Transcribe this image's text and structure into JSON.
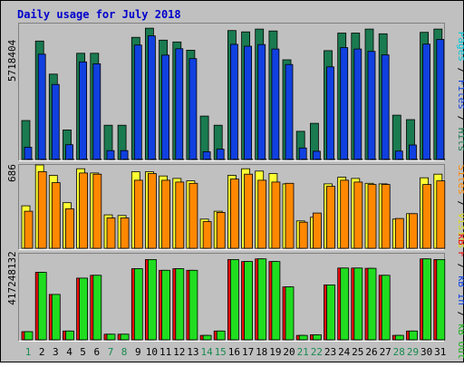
{
  "title": "Daily usage for July 2018",
  "colors": {
    "frame_bg": "#c0c0c0",
    "plot_bg": "#c0c0c0",
    "title": "#0000cc",
    "hits": "#1a7a50",
    "files": "#1040e0",
    "pages": "#00c8d8",
    "visits": "#ffff33",
    "sites": "#ff8800",
    "kbf": "#ee1010",
    "kbin": "#20dd20",
    "kbout": "#1040e0",
    "weekday_label": "#000000",
    "weekend_label": "#1a8a50"
  },
  "panels": {
    "top": {
      "scale_label": "5718404",
      "right_label": [
        {
          "text": "Hits",
          "color": "#1a7a50"
        },
        {
          "text": "Files",
          "color": "#1040e0"
        },
        {
          "text": "Pages",
          "color": "#00c8d8"
        }
      ]
    },
    "middle": {
      "scale_label": "686",
      "right_label": [
        {
          "text": "Visits",
          "color": "#d8d820"
        },
        {
          "text": "Sites",
          "color": "#ff8800"
        }
      ]
    },
    "bottom": {
      "scale_label": "417248132",
      "right_label": [
        {
          "text": "kB Out",
          "color": "#20b020"
        },
        {
          "text": "kB In",
          "color": "#1040e0"
        },
        {
          "text": "kB F",
          "color": "#ee1010"
        }
      ]
    }
  },
  "chart_data": {
    "type": "bar",
    "title": "Daily usage for July 2018",
    "categories": [
      "1",
      "2",
      "3",
      "4",
      "5",
      "6",
      "7",
      "8",
      "9",
      "10",
      "11",
      "12",
      "13",
      "14",
      "15",
      "16",
      "17",
      "18",
      "19",
      "20",
      "21",
      "22",
      "23",
      "24",
      "25",
      "26",
      "27",
      "28",
      "29",
      "30",
      "31"
    ],
    "weekend_days": [
      "1",
      "7",
      "8",
      "14",
      "15",
      "21",
      "22",
      "28",
      "29"
    ],
    "panels": [
      {
        "name": "top",
        "ylim": [
          0,
          5718404
        ],
        "series": [
          {
            "name": "Hits",
            "values": [
              1660000,
              5050000,
              3640000,
              1260000,
              4530000,
              4530000,
              1460000,
              1460000,
              5210000,
              5600000,
              5090000,
              5010000,
              4660000,
              1850000,
              1460000,
              5500000,
              5440000,
              5560000,
              5480000,
              4250000,
              1200000,
              1540000,
              4640000,
              5390000,
              5390000,
              5560000,
              5360000,
              1890000,
              1700000,
              5420000,
              5560000
            ]
          },
          {
            "name": "Files",
            "values": [
              520000,
              4490000,
              3200000,
              630000,
              4160000,
              4080000,
              380000,
              380000,
              4880000,
              5270000,
              4450000,
              4720000,
              4300000,
              330000,
              440000,
              4910000,
              4830000,
              4900000,
              4710000,
              4050000,
              490000,
              350000,
              3950000,
              4770000,
              4710000,
              4610000,
              4460000,
              360000,
              620000,
              4920000,
              5120000
            ]
          },
          {
            "name": "Pages",
            "values": [
              10000,
              10000,
              10000,
              10000,
              10000,
              10000,
              10000,
              10000,
              10000,
              10000,
              10000,
              10000,
              10000,
              10000,
              10000,
              10000,
              10000,
              10000,
              10000,
              10000,
              10000,
              10000,
              10000,
              10000,
              10000,
              10000,
              10000,
              10000,
              10000,
              10000,
              10000
            ]
          }
        ]
      },
      {
        "name": "middle",
        "ylim": [
          0,
          686
        ],
        "series": [
          {
            "name": "Visits",
            "values": [
              350,
              686,
              600,
              375,
              655,
              620,
              275,
              270,
              630,
              630,
              595,
              575,
              555,
              240,
              305,
              600,
              655,
              635,
              615,
              530,
              225,
              255,
              530,
              585,
              575,
              535,
              530,
              240,
              285,
              580,
              610
            ]
          },
          {
            "name": "Sites",
            "values": [
              305,
              630,
              540,
              325,
              620,
              610,
              250,
              250,
              560,
              615,
              560,
              545,
              535,
              220,
              295,
              570,
              610,
              560,
              545,
              535,
              215,
              290,
              510,
              560,
              545,
              525,
              525,
              245,
              285,
              525,
              555
            ]
          }
        ]
      },
      {
        "name": "bottom",
        "ylim": [
          0,
          417248132
        ],
        "series": [
          {
            "name": "kB F",
            "values": [
              41000000,
              338000000,
              227000000,
              44000000,
              309000000,
              323000000,
              28000000,
              28000000,
              356000000,
              402000000,
              348000000,
              356000000,
              348000000,
              22000000,
              44000000,
              402000000,
              392000000,
              405000000,
              392000000,
              265000000,
              22000000,
              25000000,
              275000000,
              359000000,
              359000000,
              358000000,
              323000000,
              22000000,
              44000000,
              405000000,
              402000000
            ]
          },
          {
            "name": "kB In",
            "values": [
              41000000,
              338000000,
              227000000,
              44000000,
              309000000,
              323000000,
              28000000,
              28000000,
              356000000,
              402000000,
              348000000,
              356000000,
              348000000,
              22000000,
              44000000,
              402000000,
              392000000,
              405000000,
              392000000,
              265000000,
              22000000,
              25000000,
              275000000,
              359000000,
              359000000,
              358000000,
              323000000,
              22000000,
              44000000,
              405000000,
              402000000
            ]
          },
          {
            "name": "kB Out",
            "values": [
              41000000,
              338000000,
              227000000,
              44000000,
              309000000,
              323000000,
              28000000,
              28000000,
              356000000,
              402000000,
              348000000,
              356000000,
              348000000,
              22000000,
              44000000,
              402000000,
              392000000,
              405000000,
              392000000,
              265000000,
              22000000,
              25000000,
              275000000,
              359000000,
              359000000,
              358000000,
              323000000,
              22000000,
              44000000,
              405000000,
              402000000
            ]
          }
        ]
      }
    ]
  }
}
